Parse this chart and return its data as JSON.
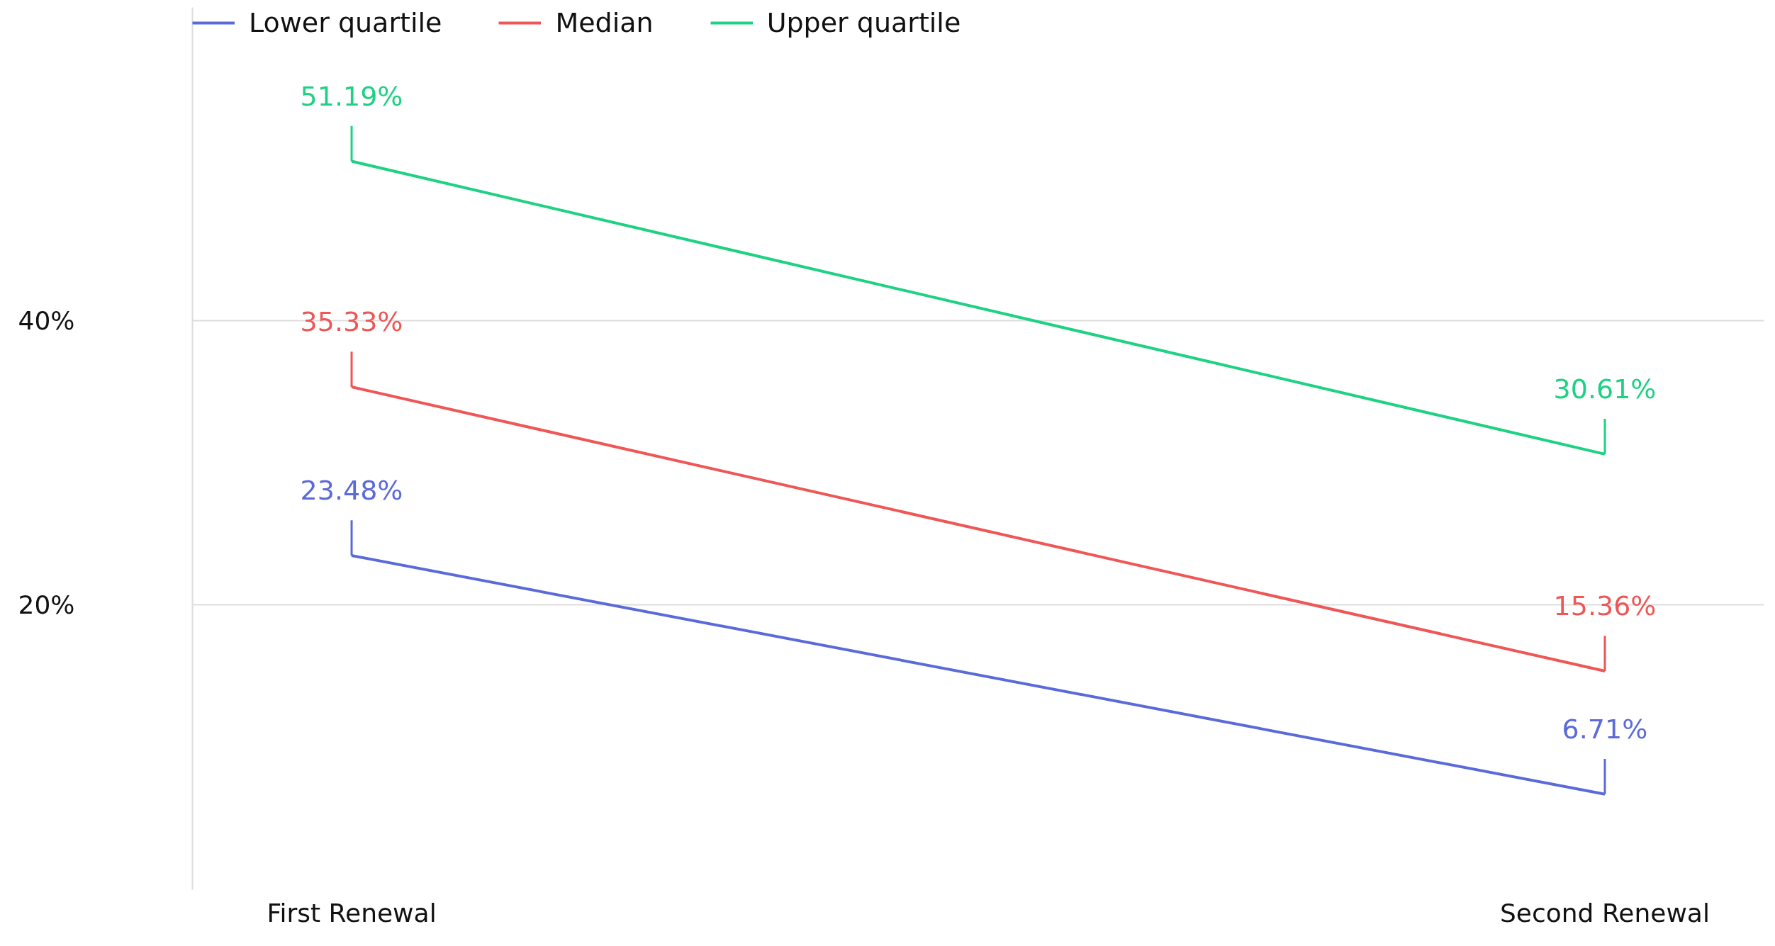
{
  "chart_data": {
    "type": "line",
    "categories": [
      "First Renewal",
      "Second Renewal"
    ],
    "series": [
      {
        "name": "Lower quartile",
        "color": "#5b6ad9",
        "values": [
          23.48,
          6.71
        ],
        "value_labels": [
          "23.48%",
          "6.71%"
        ]
      },
      {
        "name": "Median",
        "color": "#ef5656",
        "values": [
          35.33,
          15.36
        ],
        "value_labels": [
          "35.33%",
          "15.36%"
        ]
      },
      {
        "name": "Upper quartile",
        "color": "#1ed183",
        "values": [
          51.19,
          30.61
        ],
        "value_labels": [
          "51.19%",
          "30.61%"
        ]
      }
    ],
    "ylim": [
      0,
      62
    ],
    "yticks": [
      {
        "value": 20,
        "label": "20%"
      },
      {
        "value": 40,
        "label": "40%"
      }
    ],
    "grid": "y",
    "legend": "top left",
    "marker": "none",
    "line_style": "solid"
  }
}
